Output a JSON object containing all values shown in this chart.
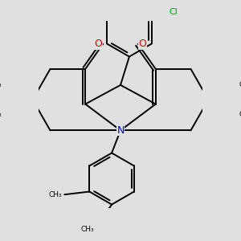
{
  "bg_color": "#e0e0e0",
  "bond_color": "#000000",
  "bond_width": 1.4,
  "N_color": "#0000cc",
  "O_color": "#cc0000",
  "Cl_color": "#00aa00",
  "figsize": [
    3.0,
    3.0
  ],
  "dpi": 100,
  "xlim": [
    -2.8,
    2.8
  ],
  "ylim": [
    -3.2,
    3.2
  ]
}
